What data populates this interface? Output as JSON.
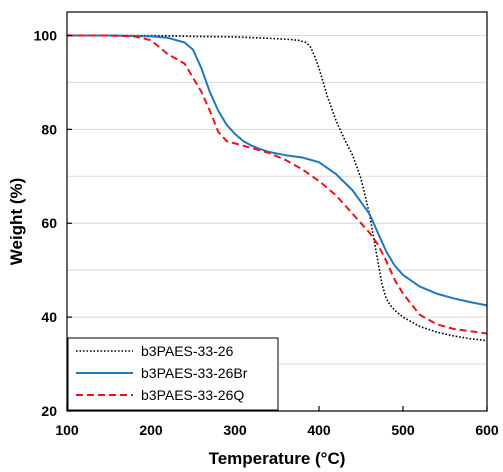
{
  "chart_data": {
    "type": "line",
    "title": "",
    "xlabel": "Temperature (°C)",
    "ylabel": "Weight (%)",
    "xlim": [
      100,
      600
    ],
    "ylim": [
      20,
      105
    ],
    "xticks": [
      100,
      200,
      300,
      400,
      500,
      600
    ],
    "yticks": [
      20,
      40,
      60,
      80,
      100
    ],
    "xtick_labels": [
      "100",
      "200",
      "300",
      "400",
      "500",
      "600"
    ],
    "ytick_labels": [
      "20",
      "40",
      "60",
      "80",
      "100"
    ],
    "grid": "horizontal",
    "legend_position": "bottom-left",
    "series": [
      {
        "name": "b3PAES-33-26",
        "color": "#000000",
        "dash": "dotted",
        "x": [
          100,
          150,
          200,
          250,
          300,
          340,
          360,
          375,
          385,
          390,
          395,
          400,
          405,
          410,
          415,
          420,
          425,
          430,
          440,
          450,
          460,
          465,
          470,
          475,
          480,
          485,
          490,
          500,
          520,
          540,
          560,
          580,
          600
        ],
        "y": [
          100,
          100,
          100,
          99.8,
          99.7,
          99.4,
          99.2,
          99.0,
          98.5,
          97.5,
          95.5,
          93,
          90,
          87,
          84.5,
          82,
          80,
          78,
          74.5,
          69.5,
          62,
          57,
          52,
          47,
          44,
          42.5,
          41.5,
          40,
          38,
          36.8,
          36,
          35.4,
          35
        ]
      },
      {
        "name": "b3PAES-33-26Br",
        "color": "#1f77c0",
        "dash": "solid",
        "x": [
          100,
          150,
          200,
          220,
          240,
          250,
          260,
          270,
          280,
          290,
          300,
          310,
          320,
          330,
          340,
          360,
          380,
          400,
          420,
          440,
          460,
          470,
          480,
          490,
          500,
          520,
          540,
          560,
          580,
          600
        ],
        "y": [
          100,
          100,
          99.8,
          99.5,
          98.5,
          97,
          93,
          88,
          84,
          81,
          79,
          77.5,
          76.5,
          75.8,
          75.2,
          74.5,
          74,
          73,
          70.5,
          67,
          62,
          58,
          54,
          51,
          49,
          46.5,
          45,
          44,
          43.2,
          42.5
        ]
      },
      {
        "name": "b3PAES-33-26Q",
        "color": "#e8141c",
        "dash": "dashed",
        "x": [
          100,
          150,
          180,
          200,
          220,
          240,
          260,
          270,
          280,
          290,
          300,
          320,
          340,
          360,
          380,
          400,
          420,
          440,
          460,
          470,
          480,
          490,
          500,
          520,
          540,
          560,
          580,
          600
        ],
        "y": [
          100,
          100,
          99.8,
          99,
          96,
          94,
          88,
          84,
          79.5,
          77.5,
          77,
          76,
          75,
          73.5,
          71.5,
          69,
          66,
          62,
          58,
          55.5,
          52,
          48,
          45,
          40.5,
          38.5,
          37.5,
          37,
          36.5
        ]
      }
    ]
  }
}
